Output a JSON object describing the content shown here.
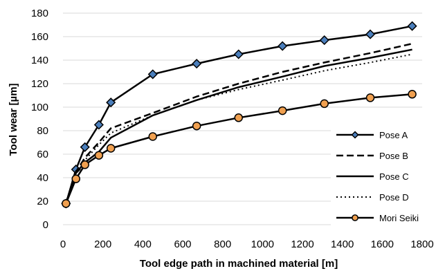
{
  "chart_data": {
    "type": "line",
    "title": "",
    "xlabel": "Tool edge path in machined material [m]",
    "ylabel": "Tool wear [µm]",
    "xlim": [
      0,
      1800
    ],
    "ylim": [
      0,
      180
    ],
    "x_ticks": [
      0,
      200,
      400,
      600,
      800,
      1000,
      1200,
      1400,
      1600,
      1800
    ],
    "y_ticks": [
      0,
      20,
      40,
      60,
      80,
      100,
      120,
      140,
      160,
      180
    ],
    "grid": "horizontal",
    "legend_position": "right",
    "series": [
      {
        "name": "Pose A",
        "style": "solid",
        "marker": "diamond",
        "color": "#000000",
        "marker_fill": "#4a7ebb",
        "x": [
          15,
          65,
          110,
          180,
          240,
          450,
          670,
          880,
          1100,
          1310,
          1540,
          1750
        ],
        "y": [
          18,
          47,
          66,
          85,
          104,
          128,
          137,
          145,
          152,
          157,
          162,
          169
        ]
      },
      {
        "name": "Pose B",
        "style": "dashed",
        "marker": "none",
        "color": "#000000",
        "x": [
          15,
          65,
          110,
          180,
          240,
          450,
          670,
          880,
          1100,
          1310,
          1540,
          1750
        ],
        "y": [
          18,
          45,
          57,
          70,
          82,
          95,
          109,
          120,
          130,
          138,
          146,
          154
        ]
      },
      {
        "name": "Pose C",
        "style": "solid",
        "marker": "none",
        "color": "#000000",
        "x": [
          15,
          65,
          110,
          180,
          240,
          450,
          670,
          880,
          1100,
          1310,
          1540,
          1750
        ],
        "y": [
          18,
          44,
          53,
          62,
          74,
          93,
          106,
          117,
          126,
          135,
          142,
          149
        ]
      },
      {
        "name": "Pose D",
        "style": "dotted",
        "marker": "none",
        "color": "#000000",
        "x": [
          15,
          65,
          110,
          180,
          240,
          450,
          670,
          880,
          1100,
          1310,
          1540,
          1750
        ],
        "y": [
          18,
          46,
          55,
          68,
          78,
          93,
          106,
          115,
          123,
          131,
          138,
          145
        ]
      },
      {
        "name": "Mori Seiki",
        "style": "solid",
        "marker": "circle",
        "color": "#000000",
        "marker_fill": "#f0a050",
        "x": [
          15,
          65,
          110,
          180,
          240,
          450,
          670,
          880,
          1100,
          1310,
          1540,
          1750
        ],
        "y": [
          18,
          39,
          51,
          59,
          65,
          75,
          84,
          91,
          97,
          103,
          108,
          111
        ]
      }
    ]
  }
}
